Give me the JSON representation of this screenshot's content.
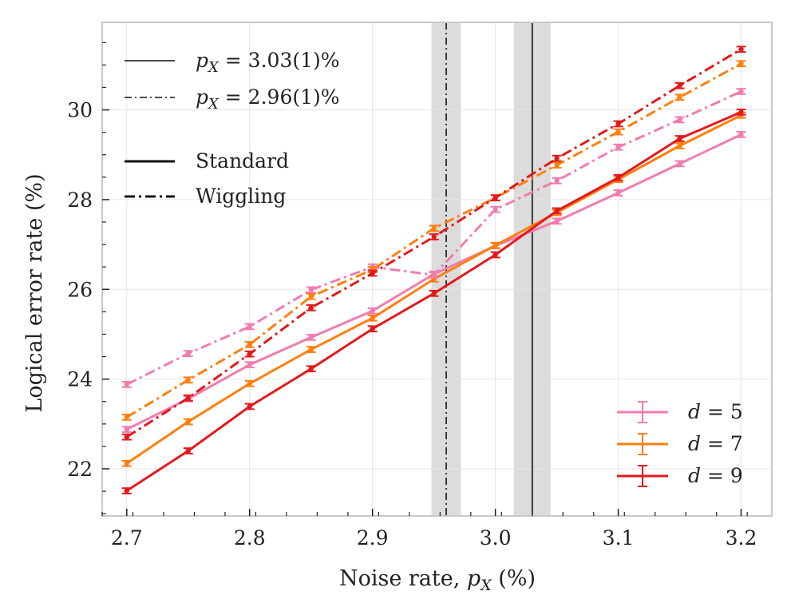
{
  "chart_data": {
    "type": "line",
    "xlabel_prefix": "Noise rate, ",
    "xlabel_math": "p",
    "xlabel_sub": "X",
    "xlabel_suffix": " (%)",
    "ylabel": "Logical error rate (%)",
    "xlim": [
      2.68,
      3.225
    ],
    "ylim": [
      20.95,
      31.95
    ],
    "x_ticks": [
      2.7,
      2.8,
      2.9,
      3.0,
      3.1,
      3.2
    ],
    "x_tick_labels": [
      "2.7",
      "2.8",
      "2.9",
      "3.0",
      "3.1",
      "3.2"
    ],
    "y_ticks": [
      22,
      24,
      26,
      28,
      30
    ],
    "y_tick_labels": [
      "22",
      "24",
      "26",
      "28",
      "30"
    ],
    "grid": true,
    "x": [
      2.7,
      2.75,
      2.8,
      2.85,
      2.9,
      2.95,
      3.0,
      3.05,
      3.1,
      3.15,
      3.2
    ],
    "series": [
      {
        "name": "d = 5",
        "protocol": "Standard",
        "color": "#f17cb0",
        "values": [
          22.88,
          23.56,
          24.32,
          24.93,
          25.52,
          26.34,
          26.97,
          27.52,
          28.15,
          28.8,
          29.45
        ]
      },
      {
        "name": "d = 7",
        "protocol": "Standard",
        "color": "#ff7f0e",
        "values": [
          22.12,
          23.05,
          23.9,
          24.66,
          25.36,
          26.23,
          26.98,
          27.71,
          28.45,
          29.2,
          29.88
        ]
      },
      {
        "name": "d = 9",
        "protocol": "Standard",
        "color": "#e31a1c",
        "values": [
          21.51,
          22.4,
          23.39,
          24.23,
          25.12,
          25.91,
          26.77,
          27.75,
          28.49,
          29.36,
          29.95
        ]
      },
      {
        "name": "d = 5",
        "protocol": "Wiggling",
        "color": "#f17cb0",
        "values": [
          23.88,
          24.57,
          25.17,
          25.99,
          26.5,
          26.32,
          27.78,
          28.42,
          29.17,
          29.78,
          30.41
        ]
      },
      {
        "name": "d = 7",
        "protocol": "Wiggling",
        "color": "#ff7f0e",
        "values": [
          23.15,
          23.98,
          24.77,
          25.84,
          26.44,
          27.36,
          28.04,
          28.77,
          29.51,
          30.28,
          31.03
        ]
      },
      {
        "name": "d = 9",
        "protocol": "Wiggling",
        "color": "#e31a1c",
        "values": [
          22.71,
          23.58,
          24.56,
          25.59,
          26.36,
          27.17,
          28.04,
          28.92,
          29.69,
          30.54,
          31.35
        ]
      }
    ],
    "error_bar": 0.06,
    "thresholds": [
      {
        "label_prefix": " = 3.03(1)%",
        "value": 3.03,
        "uncertainty": 0.015,
        "style": "solid"
      },
      {
        "label_prefix": " = 2.96(1)%",
        "value": 2.96,
        "uncertainty": 0.012,
        "style": "dashdot"
      }
    ],
    "threshold_math": "p",
    "threshold_sub": "X",
    "style_legend": [
      {
        "label": "Standard",
        "style": "solid"
      },
      {
        "label": "Wiggling",
        "style": "dashdot"
      }
    ],
    "distance_legend": [
      {
        "math": "d",
        "label": " = 5",
        "color": "#f17cb0"
      },
      {
        "math": "d",
        "label": " = 7",
        "color": "#ff7f0e"
      },
      {
        "math": "d",
        "label": " = 9",
        "color": "#e31a1c"
      }
    ],
    "colors": {
      "band": "#dcdcdc",
      "grid": "#e6e6e6",
      "frame": "#c8c8c8",
      "threshold_line": "#111111"
    }
  }
}
